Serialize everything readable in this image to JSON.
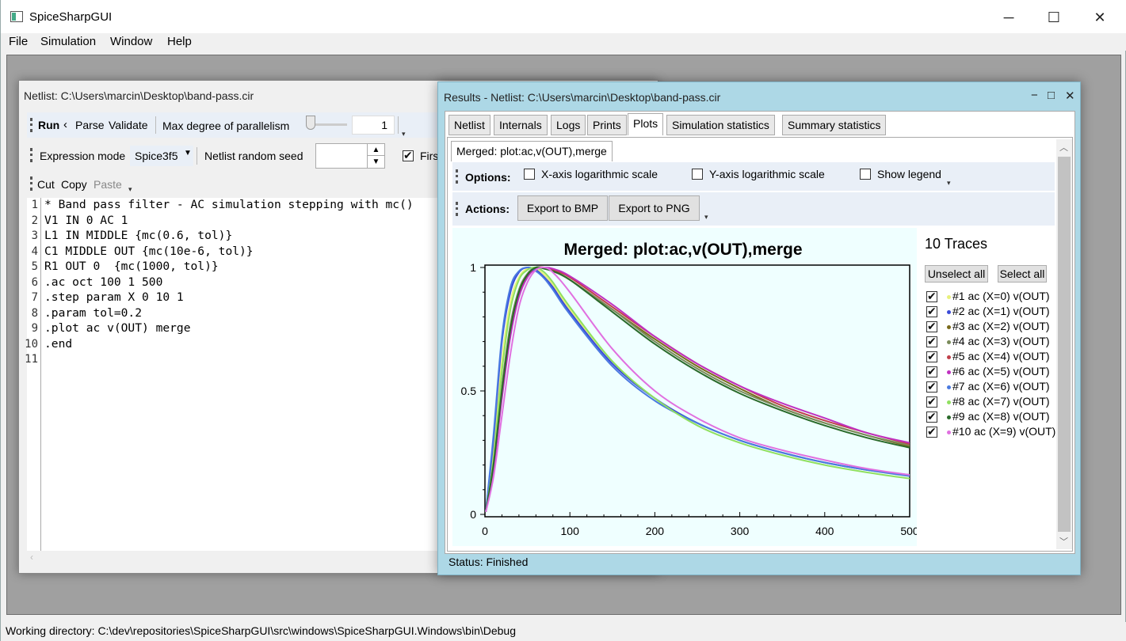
{
  "app": {
    "title": "SpiceSharpGUI",
    "window_buttons": {
      "minimize": "─",
      "maximize": "☐",
      "close": "✕"
    }
  },
  "menu": [
    "File",
    "Simulation",
    "Window",
    "Help"
  ],
  "status_bar": "Working directory: C:\\dev\\repositories\\SpiceSharpGUI\\src\\windows\\SpiceSharpGUI.Windows\\bin\\Debug",
  "netlist_window": {
    "title": "Netlist: C:\\Users\\marcin\\Desktop\\band-pass.cir",
    "toolbar1": {
      "run": "Run",
      "parse": "Parse",
      "validate": "Validate",
      "parallelism_label": "Max degree of parallelism",
      "parallelism_value": "1"
    },
    "toolbar2": {
      "expression_mode_label": "Expression mode",
      "expression_mode_value": "Spice3f5",
      "seed_label": "Netlist random seed",
      "seed_value": "",
      "first_label": "Firs"
    },
    "toolbar3": {
      "cut": "Cut",
      "copy": "Copy",
      "paste": "Paste"
    },
    "code_lines": [
      "* Band pass filter - AC simulation stepping with mc()",
      "V1 IN 0 AC 1",
      "L1 IN MIDDLE {mc(0.6, tol)}",
      "C1 MIDDLE OUT {mc(10e-6, tol)}",
      "R1 OUT 0  {mc(1000, tol)}",
      ".ac oct 100 1 500",
      ".step param X 0 10 1",
      ".param tol=0.2",
      ".plot ac v(OUT) merge",
      ".end",
      ""
    ],
    "line_numbers": [
      "1",
      "2",
      "3",
      "4",
      "5",
      "6",
      "7",
      "8",
      "9",
      "10",
      "11"
    ]
  },
  "results_window": {
    "title": "Results - Netlist: C:\\Users\\marcin\\Desktop\\band-pass.cir",
    "window_buttons": {
      "minimize": "−",
      "maximize": "□",
      "close": "✕"
    },
    "tabs": [
      "Netlist",
      "Internals",
      "Logs",
      "Prints",
      "Plots",
      "Simulation statistics",
      "Summary statistics"
    ],
    "active_tab": "Plots",
    "subtab": "Merged: plot:ac,v(OUT),merge",
    "options_label": "Options:",
    "options": [
      {
        "label": "X-axis logarithmic scale",
        "checked": false
      },
      {
        "label": "Y-axis logarithmic scale",
        "checked": false
      },
      {
        "label": "Show legend",
        "checked": false
      }
    ],
    "actions_label": "Actions:",
    "export_bmp": "Export to BMP",
    "export_png": "Export to PNG",
    "traces_title": "10 Traces",
    "unselect_all": "Unselect all",
    "select_all": "Select all",
    "traces": [
      {
        "label": "#1 ac (X=0) v(OUT)",
        "color": "#e8f07a"
      },
      {
        "label": "#2 ac (X=1) v(OUT)",
        "color": "#3b4bd8"
      },
      {
        "label": "#3 ac (X=2) v(OUT)",
        "color": "#7a6a1a"
      },
      {
        "label": "#4 ac (X=3) v(OUT)",
        "color": "#7a8a5a"
      },
      {
        "label": "#5 ac (X=4) v(OUT)",
        "color": "#c0404a"
      },
      {
        "label": "#6 ac (X=5) v(OUT)",
        "color": "#c030c0"
      },
      {
        "label": "#7 ac (X=6) v(OUT)",
        "color": "#4a7ae0"
      },
      {
        "label": "#8 ac (X=7) v(OUT)",
        "color": "#90e060"
      },
      {
        "label": "#9 ac (X=8) v(OUT)",
        "color": "#2a6a2a"
      },
      {
        "label": "#10 ac (X=9) v(OUT)",
        "color": "#e070e0"
      }
    ],
    "status": "Status: Finished"
  },
  "chart_data": {
    "type": "line",
    "title": "Merged: plot:ac,v(OUT),merge",
    "xlabel": "",
    "ylabel": "",
    "xlim": [
      0,
      500
    ],
    "ylim": [
      0,
      1
    ],
    "x_ticks": [
      "0",
      "100",
      "200",
      "300",
      "400",
      "500"
    ],
    "y_ticks": [
      "0",
      "0.5",
      "1"
    ],
    "x": [
      1,
      10,
      20,
      30,
      40,
      50,
      60,
      70,
      80,
      100,
      150,
      200,
      250,
      300,
      350,
      400,
      450,
      500
    ],
    "series": [
      {
        "color": "#e8f07a",
        "values": [
          0.01,
          0.25,
          0.62,
          0.86,
          0.96,
          0.995,
          0.995,
          0.97,
          0.93,
          0.83,
          0.62,
          0.47,
          0.37,
          0.3,
          0.25,
          0.21,
          0.18,
          0.155
        ]
      },
      {
        "color": "#3b4bd8",
        "values": [
          0.01,
          0.3,
          0.7,
          0.9,
          0.98,
          1.0,
          0.99,
          0.96,
          0.92,
          0.82,
          0.61,
          0.47,
          0.37,
          0.3,
          0.25,
          0.21,
          0.18,
          0.16
        ]
      },
      {
        "color": "#7a6a1a",
        "values": [
          0.01,
          0.2,
          0.5,
          0.75,
          0.9,
          0.97,
          1.0,
          0.995,
          0.985,
          0.95,
          0.83,
          0.71,
          0.6,
          0.51,
          0.43,
          0.37,
          0.32,
          0.275
        ]
      },
      {
        "color": "#7a8a5a",
        "values": [
          0.01,
          0.21,
          0.52,
          0.77,
          0.91,
          0.975,
          1.0,
          0.995,
          0.985,
          0.95,
          0.83,
          0.7,
          0.59,
          0.5,
          0.43,
          0.37,
          0.32,
          0.28
        ]
      },
      {
        "color": "#c0404a",
        "values": [
          0.01,
          0.19,
          0.48,
          0.73,
          0.89,
          0.965,
          0.998,
          1.0,
          0.99,
          0.96,
          0.84,
          0.72,
          0.61,
          0.52,
          0.44,
          0.38,
          0.33,
          0.285
        ]
      },
      {
        "color": "#c030c0",
        "values": [
          0.01,
          0.18,
          0.47,
          0.72,
          0.88,
          0.96,
          0.995,
          1.0,
          0.995,
          0.965,
          0.85,
          0.72,
          0.61,
          0.52,
          0.45,
          0.39,
          0.33,
          0.29
        ]
      },
      {
        "color": "#4a7ae0",
        "values": [
          0.01,
          0.32,
          0.72,
          0.92,
          0.985,
          1.0,
          0.985,
          0.955,
          0.91,
          0.81,
          0.6,
          0.46,
          0.37,
          0.3,
          0.25,
          0.21,
          0.18,
          0.155
        ]
      },
      {
        "color": "#90e060",
        "values": [
          0.01,
          0.22,
          0.58,
          0.83,
          0.95,
          0.99,
          1.0,
          0.98,
          0.94,
          0.84,
          0.62,
          0.47,
          0.36,
          0.29,
          0.24,
          0.2,
          0.17,
          0.145
        ]
      },
      {
        "color": "#2a6a2a",
        "values": [
          0.01,
          0.2,
          0.5,
          0.75,
          0.9,
          0.97,
          1.0,
          0.995,
          0.985,
          0.95,
          0.82,
          0.69,
          0.58,
          0.49,
          0.42,
          0.36,
          0.31,
          0.27
        ]
      },
      {
        "color": "#e070e0",
        "values": [
          0.01,
          0.15,
          0.4,
          0.65,
          0.84,
          0.94,
          0.99,
          1.0,
          0.98,
          0.9,
          0.67,
          0.5,
          0.39,
          0.31,
          0.26,
          0.22,
          0.185,
          0.16
        ]
      }
    ],
    "grid": false,
    "legend": "none"
  }
}
